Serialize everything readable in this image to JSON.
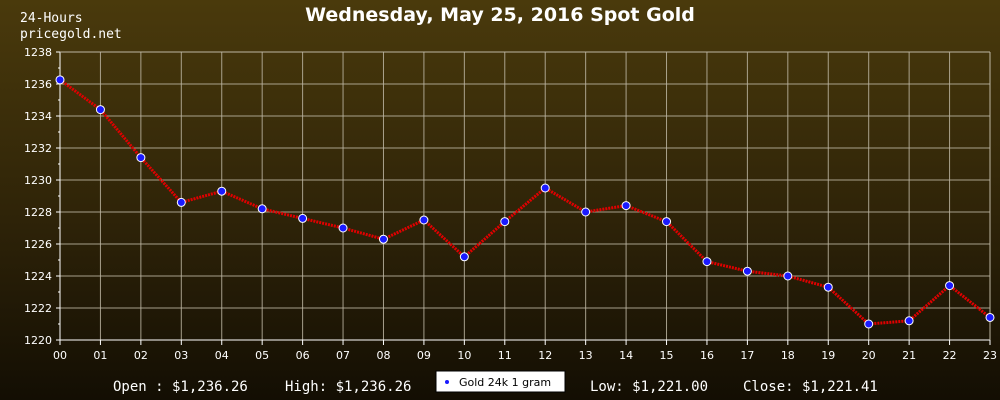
{
  "header": {
    "title": "Wednesday, May 25, 2016 Spot Gold",
    "period": "24-Hours",
    "site": "pricegold.net"
  },
  "stats": {
    "open": "Open : $1,236.26",
    "high": "High: $1,236.26",
    "low": "Low: $1,221.00",
    "close": "Close: $1,221.41"
  },
  "legend": {
    "label": "Gold 24k 1 gram"
  },
  "colors": {
    "line": "#e00000",
    "marker": "#1a1aff",
    "grid": "#bdb6a3",
    "axis": "#ffffff"
  },
  "chart_data": {
    "type": "line",
    "title": "Wednesday, May 25, 2016 Spot Gold",
    "xlabel": "",
    "ylabel": "",
    "x": [
      "00",
      "01",
      "02",
      "03",
      "04",
      "05",
      "06",
      "07",
      "08",
      "09",
      "10",
      "11",
      "12",
      "13",
      "14",
      "15",
      "16",
      "17",
      "18",
      "19",
      "20",
      "21",
      "22",
      "23"
    ],
    "series": [
      {
        "name": "Gold 24k 1 gram",
        "values": [
          1236.26,
          1234.4,
          1231.4,
          1228.6,
          1229.3,
          1228.2,
          1227.6,
          1227.0,
          1226.3,
          1227.5,
          1225.2,
          1227.4,
          1229.5,
          1228.0,
          1228.4,
          1227.4,
          1224.9,
          1224.3,
          1224.0,
          1223.3,
          1221.0,
          1221.2,
          1223.4,
          1221.41
        ]
      }
    ],
    "ylim": [
      1220,
      1238
    ],
    "yticks": [
      1220,
      1222,
      1224,
      1226,
      1228,
      1230,
      1232,
      1234,
      1236,
      1238
    ],
    "grid": true,
    "legend": "bottom-center"
  }
}
